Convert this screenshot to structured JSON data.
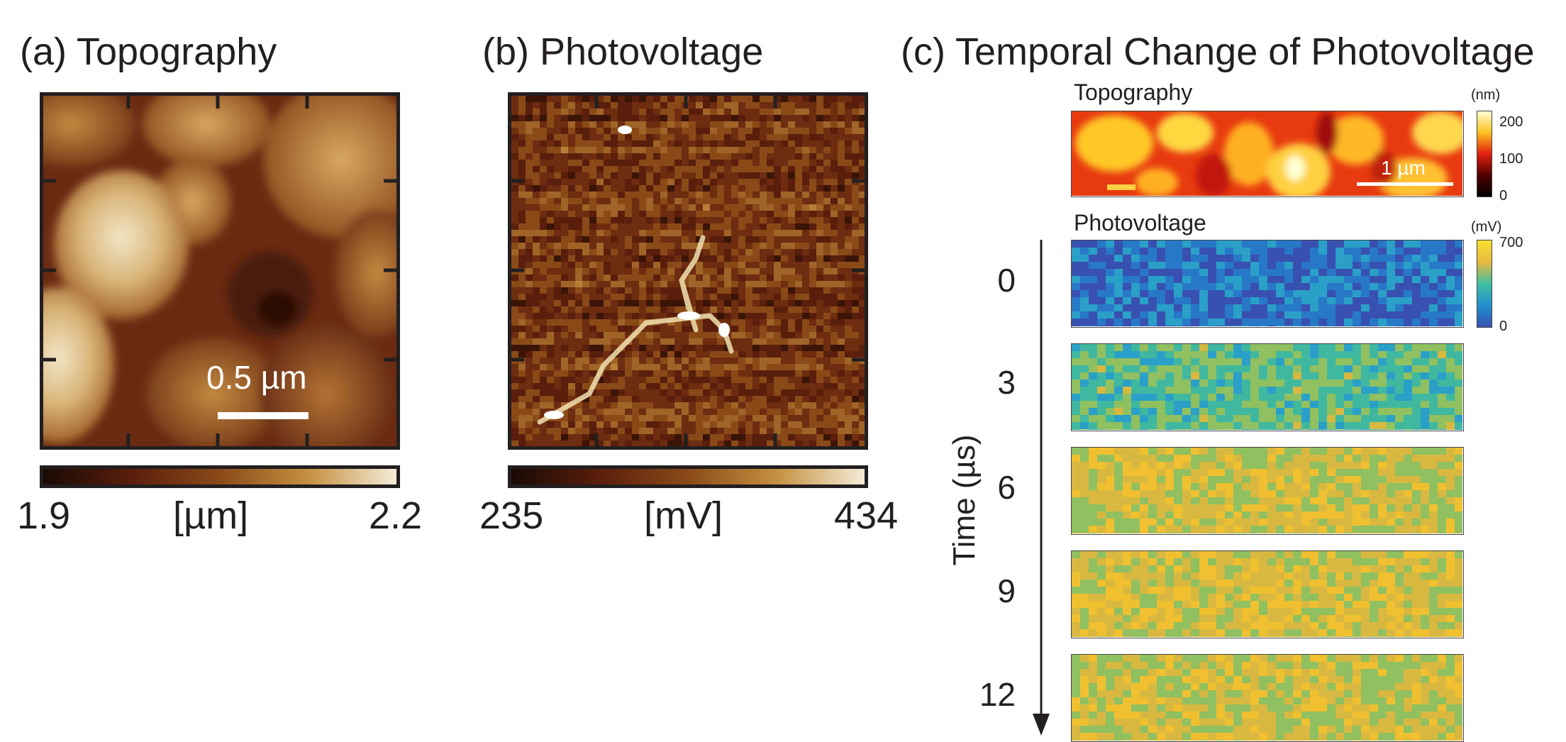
{
  "panel_a": {
    "title": "(a) Topography",
    "scalebar_label": "0.5 µm",
    "colorbar": {
      "min": "1.9",
      "unit": "[µm]",
      "max": "2.2",
      "colors": [
        "#1a0a04",
        "#5a1e0c",
        "#8a4a18",
        "#c49040",
        "#f5ecd8"
      ]
    }
  },
  "panel_b": {
    "title": "(b) Photovoltage",
    "colorbar": {
      "min": "235",
      "unit": "[mV]",
      "max": "434",
      "colors": [
        "#1a0a04",
        "#5a1e0c",
        "#8a4a18",
        "#c49040",
        "#f5ecd8"
      ]
    }
  },
  "panel_c": {
    "title": "(c) Temporal Change of Photovoltage",
    "topography_label": "Topography",
    "topo_unit": "(nm)",
    "topo_ticks": [
      "200",
      "100",
      "0"
    ],
    "topo_colors": [
      "#ffffd0",
      "#ffc020",
      "#e02010",
      "#500000",
      "#000000"
    ],
    "scalebar_label": "1 µm",
    "photovoltage_label": "Photovoltage",
    "pv_unit": "(mV)",
    "pv_ticks": [
      "700",
      "0"
    ],
    "pv_colors": [
      "#f8e030",
      "#e8b840",
      "#40c0a0",
      "#2090d0",
      "#3850b0"
    ],
    "time_axis_label": "Time (µs)",
    "time_labels": [
      "0",
      "3",
      "6",
      "9",
      "12"
    ],
    "frame_mean_levels": [
      0.15,
      0.55,
      0.8,
      0.82,
      0.8
    ]
  }
}
